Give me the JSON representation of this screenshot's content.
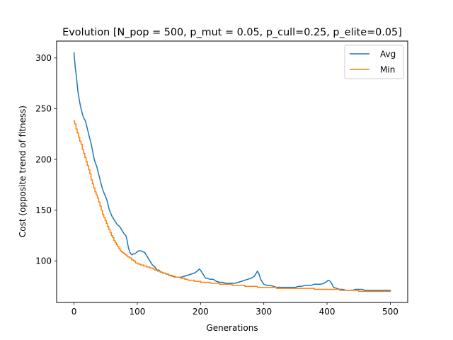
{
  "chart_data": {
    "type": "line",
    "title": "Evolution [N_pop = 500, p_mut = 0.05, p_cull=0.25, p_elite=0.05]",
    "xlabel": "Generations",
    "ylabel": "Cost (opposite trend of fitness)",
    "xlim": [
      -27.5,
      527.5
    ],
    "ylim": [
      59.1,
      316.6
    ],
    "xticks": [
      0,
      100,
      200,
      300,
      400,
      500
    ],
    "yticks": [
      100,
      150,
      200,
      250,
      300
    ],
    "grid": false,
    "legend": "top-right",
    "series": [
      {
        "name": "Avg",
        "color": "#1f77b4",
        "x": [
          0,
          2,
          4,
          6,
          8,
          10,
          12,
          14,
          16,
          18,
          20,
          22,
          24,
          26,
          28,
          30,
          32,
          34,
          36,
          38,
          40,
          42,
          44,
          46,
          48,
          50,
          52,
          54,
          56,
          58,
          60,
          62,
          64,
          66,
          68,
          70,
          72,
          74,
          76,
          78,
          80,
          82,
          84,
          86,
          88,
          90,
          92,
          94,
          96,
          98,
          100,
          102,
          104,
          106,
          108,
          110,
          112,
          114,
          116,
          118,
          120,
          122,
          124,
          126,
          128,
          130,
          132,
          134,
          136,
          138,
          140,
          142,
          144,
          146,
          148,
          150,
          155,
          160,
          165,
          170,
          175,
          180,
          185,
          190,
          195,
          198,
          200,
          202,
          205,
          208,
          210,
          215,
          220,
          225,
          230,
          235,
          240,
          245,
          250,
          255,
          260,
          265,
          270,
          275,
          280,
          285,
          288,
          290,
          292,
          295,
          298,
          300,
          305,
          310,
          315,
          320,
          325,
          330,
          335,
          340,
          345,
          350,
          355,
          360,
          365,
          370,
          375,
          380,
          385,
          390,
          395,
          400,
          402,
          405,
          408,
          410,
          415,
          420,
          425,
          430,
          435,
          440,
          445,
          450,
          455,
          460,
          465,
          470,
          475,
          480,
          485,
          490,
          495,
          500
        ],
        "y": [
          305,
          290,
          280,
          268,
          260,
          253,
          248,
          243,
          240,
          238,
          233,
          228,
          223,
          218,
          213,
          206,
          200,
          196,
          193,
          188,
          183,
          178,
          173,
          169,
          166,
          163,
          160,
          155,
          150,
          147,
          144,
          142,
          140,
          138,
          136,
          135,
          134,
          132,
          130,
          128,
          126,
          125,
          120,
          113,
          109,
          107,
          106,
          107,
          107,
          108,
          109,
          110,
          110,
          110,
          109,
          109,
          108,
          106,
          104,
          102,
          100,
          98,
          96,
          95,
          94,
          92,
          91,
          91,
          90,
          89,
          89,
          88,
          88,
          87,
          87,
          86,
          85,
          84,
          84,
          84,
          85,
          86,
          87,
          88,
          90,
          92,
          91,
          89,
          86,
          83,
          83,
          82,
          82,
          80,
          79,
          79,
          78,
          78,
          78,
          78,
          79,
          80,
          81,
          82,
          83,
          85,
          88,
          90,
          88,
          82,
          79,
          77,
          76,
          76,
          75,
          74,
          74,
          74,
          74,
          74,
          74,
          74,
          75,
          75,
          76,
          76,
          76,
          77,
          77,
          77,
          78,
          80,
          81,
          80,
          77,
          74,
          73,
          72,
          72,
          71,
          71,
          71,
          72,
          72,
          72,
          71,
          71,
          71,
          71,
          71,
          71,
          71,
          71,
          71
        ]
      },
      {
        "name": "Min",
        "color": "#ff7f0e",
        "x": [
          0,
          1,
          1,
          3,
          3,
          5,
          5,
          7,
          7,
          9,
          9,
          11,
          11,
          13,
          13,
          15,
          15,
          17,
          17,
          19,
          19,
          21,
          21,
          23,
          23,
          25,
          25,
          27,
          27,
          29,
          29,
          31,
          31,
          33,
          33,
          35,
          35,
          37,
          37,
          39,
          39,
          41,
          41,
          43,
          43,
          45,
          45,
          47,
          47,
          49,
          49,
          51,
          51,
          53,
          53,
          55,
          55,
          57,
          57,
          59,
          59,
          61,
          61,
          63,
          63,
          65,
          65,
          67,
          67,
          69,
          69,
          71,
          71,
          73,
          73,
          75,
          75,
          77,
          77,
          79,
          79,
          81,
          81,
          83,
          83,
          85,
          85,
          88,
          88,
          91,
          91,
          94,
          94,
          97,
          97,
          101,
          101,
          105,
          105,
          110,
          110,
          115,
          115,
          120,
          120,
          125,
          125,
          128,
          128,
          132,
          132,
          136,
          136,
          140,
          140,
          145,
          145,
          150,
          150,
          155,
          155,
          160,
          160,
          168,
          168,
          175,
          175,
          180,
          180,
          190,
          190,
          200,
          200,
          215,
          215,
          230,
          230,
          250,
          250,
          270,
          270,
          290,
          290,
          320,
          320,
          360,
          360,
          380,
          380,
          420,
          420,
          450,
          450,
          480,
          480,
          500
        ],
        "y": [
          238,
          238,
          235,
          235,
          230,
          230,
          226,
          226,
          222,
          222,
          218,
          218,
          215,
          215,
          210,
          210,
          206,
          206,
          202,
          202,
          198,
          198,
          194,
          194,
          190,
          190,
          186,
          186,
          180,
          180,
          176,
          176,
          172,
          172,
          168,
          168,
          165,
          165,
          162,
          162,
          158,
          158,
          154,
          154,
          150,
          150,
          146,
          146,
          143,
          143,
          140,
          140,
          137,
          137,
          134,
          134,
          131,
          131,
          128,
          128,
          125,
          125,
          123,
          123,
          120,
          120,
          118,
          118,
          116,
          116,
          114,
          114,
          112,
          112,
          110,
          110,
          109,
          109,
          108,
          108,
          107,
          107,
          106,
          106,
          105,
          105,
          104,
          104,
          103,
          103,
          101,
          101,
          100,
          100,
          98,
          98,
          97,
          97,
          96,
          96,
          95,
          95,
          94,
          94,
          93,
          93,
          92,
          92,
          91,
          91,
          90,
          90,
          89,
          89,
          88,
          88,
          87,
          87,
          86,
          86,
          85,
          85,
          84,
          84,
          83,
          83,
          82,
          82,
          81,
          81,
          80,
          80,
          79,
          79,
          78,
          78,
          77,
          77,
          76,
          76,
          75,
          75,
          74,
          74,
          73,
          73,
          73,
          73,
          72,
          72,
          71,
          71,
          70,
          70,
          70,
          70
        ]
      }
    ]
  }
}
